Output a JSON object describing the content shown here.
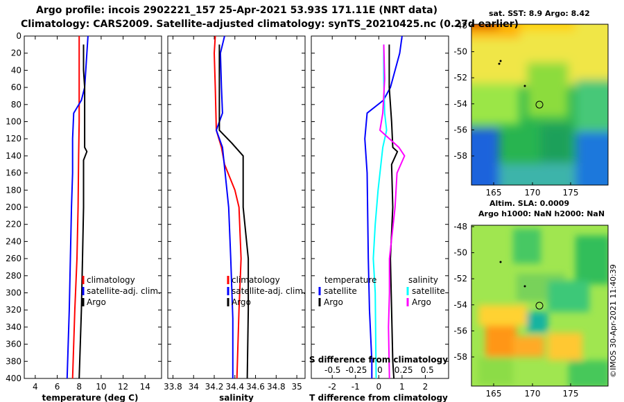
{
  "header": {
    "line1": "Argo profile: incois 2902221_157 25-Apr-2021 53.93S 171.11E (NRT data)",
    "line2": "Climatology: CARS2009. Satellite-adjusted climatology: synTS_20210425.nc (0.27d earlier)"
  },
  "credit": "©IMOS 30-Apr-2021 11:40:39",
  "colors": {
    "climatology": "#ff0000",
    "satellite": "#0000ff",
    "argo": "#000000",
    "sat_salinity": "#00ffff",
    "argo_salinity": "#ff00ff"
  },
  "chart_data": [
    {
      "type": "line",
      "id": "temperature",
      "xlabel": "temperature (deg C)",
      "ylabel": "",
      "xlim": [
        3,
        15.5
      ],
      "ylim": [
        400,
        0
      ],
      "xticks": [
        4,
        6,
        8,
        10,
        12,
        14
      ],
      "yticks": [
        0,
        20,
        40,
        60,
        80,
        100,
        120,
        140,
        160,
        180,
        200,
        220,
        240,
        260,
        280,
        300,
        320,
        340,
        360,
        380,
        400
      ],
      "legend": {
        "position": "bottom-right",
        "entries": [
          "climatology",
          "satellite-adj. clim.",
          "Argo"
        ]
      },
      "series": [
        {
          "name": "climatology",
          "color": "#ff0000",
          "points": [
            [
              8.0,
              0
            ],
            [
              8.0,
              20
            ],
            [
              8.0,
              60
            ],
            [
              8.0,
              100
            ],
            [
              7.95,
              140
            ],
            [
              7.9,
              200
            ],
            [
              7.8,
              260
            ],
            [
              7.6,
              320
            ],
            [
              7.4,
              400
            ]
          ]
        },
        {
          "name": "satellite-adj. clim.",
          "color": "#0000ff",
          "points": [
            [
              8.8,
              0
            ],
            [
              8.7,
              20
            ],
            [
              8.5,
              60
            ],
            [
              8.2,
              75
            ],
            [
              7.5,
              90
            ],
            [
              7.4,
              120
            ],
            [
              7.4,
              160
            ],
            [
              7.3,
              200
            ],
            [
              7.2,
              260
            ],
            [
              7.1,
              320
            ],
            [
              6.9,
              400
            ]
          ]
        },
        {
          "name": "Argo",
          "color": "#000000",
          "points": [
            [
              8.4,
              10
            ],
            [
              8.4,
              40
            ],
            [
              8.5,
              60
            ],
            [
              8.5,
              100
            ],
            [
              8.5,
              130
            ],
            [
              8.7,
              135
            ],
            [
              8.4,
              145
            ],
            [
              8.4,
              200
            ],
            [
              8.3,
              260
            ],
            [
              8.2,
              320
            ],
            [
              8.1,
              360
            ],
            [
              8.0,
              400
            ]
          ]
        }
      ]
    },
    {
      "type": "line",
      "id": "salinity",
      "xlabel": "salinity",
      "ylabel": "",
      "xlim": [
        33.75,
        35.08
      ],
      "ylim": [
        400,
        0
      ],
      "xticks": [
        33.8,
        34,
        34.2,
        34.4,
        34.6,
        34.8,
        35
      ],
      "xtick_labels": [
        "33.8",
        "34",
        "34.2",
        "34.4",
        "34.6",
        "34.8",
        "35"
      ],
      "legend": {
        "position": "bottom-right",
        "entries": [
          "climatology",
          "satellite-adj. clim.",
          "Argo"
        ]
      },
      "series": [
        {
          "name": "climatology",
          "color": "#ff0000",
          "points": [
            [
              34.21,
              0
            ],
            [
              34.2,
              20
            ],
            [
              34.21,
              60
            ],
            [
              34.22,
              110
            ],
            [
              34.27,
              130
            ],
            [
              34.3,
              150
            ],
            [
              34.4,
              180
            ],
            [
              34.44,
              200
            ],
            [
              34.46,
              260
            ],
            [
              34.44,
              320
            ],
            [
              34.42,
              400
            ]
          ]
        },
        {
          "name": "satellite-adj. clim.",
          "color": "#0000ff",
          "points": [
            [
              34.3,
              0
            ],
            [
              34.26,
              20
            ],
            [
              34.27,
              60
            ],
            [
              34.28,
              90
            ],
            [
              34.22,
              110
            ],
            [
              34.28,
              130
            ],
            [
              34.34,
              200
            ],
            [
              34.36,
              260
            ],
            [
              34.38,
              330
            ],
            [
              34.38,
              400
            ]
          ]
        },
        {
          "name": "Argo",
          "color": "#000000",
          "points": [
            [
              34.25,
              10
            ],
            [
              34.25,
              60
            ],
            [
              34.25,
              110
            ],
            [
              34.37,
              125
            ],
            [
              34.48,
              140
            ],
            [
              34.48,
              200
            ],
            [
              34.53,
              260
            ],
            [
              34.53,
              320
            ],
            [
              34.52,
              400
            ]
          ]
        }
      ]
    },
    {
      "type": "line",
      "id": "difference",
      "xlabel": "T difference from climatology",
      "ylabel": "",
      "xlim": [
        -2.9,
        3.0
      ],
      "ylim": [
        400,
        0
      ],
      "xticks": [
        -2,
        -1,
        0,
        1,
        2
      ],
      "xtick_labels": [
        "-2",
        "-1",
        "0",
        "1",
        "2"
      ],
      "secondary_axis": {
        "label": "S difference from climatology",
        "ticks": [
          -0.5,
          -0.25,
          0,
          0.25,
          0.5
        ],
        "tick_labels": [
          "-0.5",
          "-0.25",
          "0",
          "0.25",
          "0.5"
        ]
      },
      "legend": {
        "position": "bottom",
        "groups": [
          {
            "title": "temperature",
            "entries": [
              "satellite",
              "Argo"
            ]
          },
          {
            "title": "salinity",
            "entries": [
              "satellite",
              "Argo"
            ]
          }
        ]
      },
      "series": [
        {
          "name": "temperature satellite",
          "color": "#0000ff",
          "points": [
            [
              1.0,
              0
            ],
            [
              0.9,
              20
            ],
            [
              0.5,
              60
            ],
            [
              0.2,
              75
            ],
            [
              -0.5,
              90
            ],
            [
              -0.6,
              120
            ],
            [
              -0.5,
              160
            ],
            [
              -0.45,
              260
            ],
            [
              -0.4,
              320
            ],
            [
              -0.3,
              380
            ],
            [
              -0.3,
              400
            ]
          ]
        },
        {
          "name": "temperature Argo",
          "color": "#000000",
          "points": [
            [
              0.45,
              10
            ],
            [
              0.45,
              60
            ],
            [
              0.55,
              100
            ],
            [
              0.6,
              130
            ],
            [
              0.8,
              135
            ],
            [
              0.55,
              150
            ],
            [
              0.6,
              200
            ],
            [
              0.5,
              260
            ],
            [
              0.55,
              320
            ],
            [
              0.6,
              380
            ],
            [
              0.65,
              400
            ]
          ]
        },
        {
          "name": "salinity satellite",
          "color": "#00ffff",
          "points": [
            [
              0.04,
              10
            ],
            [
              0.04,
              50
            ],
            [
              0.05,
              90
            ],
            [
              0.07,
              110
            ],
            [
              0.03,
              130
            ],
            [
              -0.02,
              180
            ],
            [
              -0.05,
              220
            ],
            [
              -0.07,
              260
            ],
            [
              -0.05,
              300
            ],
            [
              -0.04,
              400
            ]
          ]
        },
        {
          "name": "salinity Argo",
          "color": "#ff00ff",
          "points": [
            [
              0.04,
              10
            ],
            [
              0.05,
              50
            ],
            [
              0.03,
              90
            ],
            [
              0.0,
              110
            ],
            [
              0.1,
              120
            ],
            [
              0.2,
              130
            ],
            [
              0.26,
              140
            ],
            [
              0.18,
              160
            ],
            [
              0.16,
              200
            ],
            [
              0.12,
              240
            ],
            [
              0.1,
              260
            ],
            [
              0.1,
              300
            ],
            [
              0.09,
              340
            ],
            [
              0.1,
              400
            ]
          ]
        }
      ]
    }
  ],
  "maps": [
    {
      "id": "sst",
      "title": "sat. SST: 8.9 Argo: 8.42",
      "ytick_labels": [
        "-48",
        "-50",
        "-52",
        "-54",
        "-56",
        "-58"
      ],
      "xtick_labels": [
        "165",
        "170",
        "175"
      ]
    },
    {
      "id": "sla",
      "title_line1": "Altim. SLA: 0.0009",
      "title_line2": "Argo h1000: NaN h2000: NaN",
      "ytick_labels": [
        "-48",
        "-50",
        "-52",
        "-54",
        "-56",
        "-58"
      ],
      "xtick_labels": [
        "165",
        "170",
        "175"
      ]
    }
  ]
}
